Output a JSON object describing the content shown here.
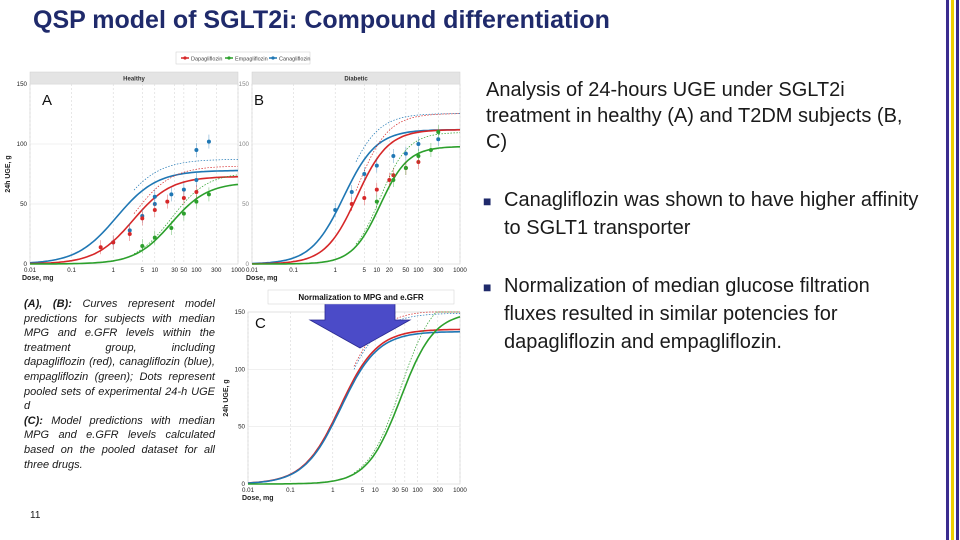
{
  "title": "QSP model of SGLT2i: Compound differentiation",
  "analysis_text": "Analysis of 24-hours UGE under SGLT2i treatment in healthy (A) and T2DM subjects (B, C)",
  "bullets": [
    "Canagliflozin was shown to have higher affinity to SGLT1 transporter",
    "Normalization of median glucose filtration fluxes resulted in similar potencies for dapagliflozin and empagliflozin."
  ],
  "caption": {
    "ab_label": "(A), (B):",
    "ab_text": " Curves represent model predictions for subjects with median MPG and e.GFR levels within the treatment group, including dapagliflozin (red), canagliflozin (blue), empagliflozin (green); Dots represent pooled sets of experimental 24-h UGE d",
    "c_label": "(C):",
    "c_text": " Model predictions with median MPG and e.GFR levels calculated based on the pooled dataset for all three drugs."
  },
  "page_number": "11",
  "arrow_label": "Normalization to MPG and e.GFR",
  "colors": {
    "dapagliflozin": "#d62728",
    "empagliflozin": "#2ca02c",
    "canagliflozin": "#1f77b4",
    "title": "#1f2a6b",
    "arrow": "#4b4bc8"
  },
  "chart_data": [
    {
      "type": "line",
      "panel_label": "A",
      "strip_label": "Healthy",
      "legend": [
        "Dapagliflozin",
        "Empagliflozin",
        "Canagliflozin"
      ],
      "xlabel": "Dose, mg",
      "ylabel": "24h UGE, g",
      "xscale": "log",
      "xlim": [
        0.01,
        1000
      ],
      "ylim": [
        0,
        150
      ],
      "xticks": [
        "0.01",
        "0.1",
        "1",
        "5",
        "10",
        "30",
        "50",
        "100",
        "300",
        "1000"
      ],
      "yticks": [
        "0",
        "50",
        "100",
        "150"
      ],
      "series": [
        {
          "name": "Canagliflozin",
          "emax": 78,
          "ed50": 1.2,
          "hill": 0.9
        },
        {
          "name": "Dapagliflozin",
          "emax": 73,
          "ed50": 3.0,
          "hill": 0.95
        },
        {
          "name": "Empagliflozin",
          "emax": 68,
          "ed50": 25,
          "hill": 1.0
        }
      ],
      "points": [
        {
          "series": "Canagliflozin",
          "x": [
            1,
            2.5,
            5,
            10,
            10,
            25,
            50,
            100,
            100,
            200
          ],
          "y": [
            18,
            28,
            40,
            50,
            56,
            58,
            62,
            70,
            95,
            102
          ]
        },
        {
          "series": "Dapagliflozin",
          "x": [
            0.5,
            1,
            2.5,
            5,
            10,
            20,
            50,
            100
          ],
          "y": [
            14,
            18,
            25,
            38,
            45,
            52,
            55,
            60
          ]
        },
        {
          "series": "Empagliflozin",
          "x": [
            5,
            10,
            25,
            50,
            100,
            200
          ],
          "y": [
            15,
            22,
            30,
            42,
            52,
            58
          ]
        }
      ]
    },
    {
      "type": "line",
      "panel_label": "B",
      "strip_label": "Diabetic",
      "xlabel": "Dose, mg",
      "ylabel": "24h UGE, g",
      "xscale": "log",
      "xlim": [
        0.01,
        1000
      ],
      "ylim": [
        0,
        150
      ],
      "xticks": [
        "0.01",
        "0.1",
        "1",
        "5",
        "10",
        "20",
        "50",
        "100",
        "300",
        "1000"
      ],
      "series": [
        {
          "name": "Canagliflozin",
          "emax": 112,
          "ed50": 1.6,
          "hill": 1.1
        },
        {
          "name": "Dapagliflozin",
          "emax": 112,
          "ed50": 3.3,
          "hill": 1.15
        },
        {
          "name": "Empagliflozin",
          "emax": 98,
          "ed50": 12,
          "hill": 1.3
        }
      ],
      "points": [
        {
          "series": "Canagliflozin",
          "x": [
            1,
            2.5,
            5,
            10,
            25,
            50,
            100,
            300
          ],
          "y": [
            45,
            60,
            75,
            82,
            90,
            92,
            100,
            104
          ]
        },
        {
          "series": "Dapagliflozin",
          "x": [
            2.5,
            5,
            10,
            20,
            25,
            50,
            100
          ],
          "y": [
            50,
            55,
            62,
            70,
            74,
            80,
            85
          ]
        },
        {
          "series": "Empagliflozin",
          "x": [
            10,
            25,
            50,
            100,
            200,
            300
          ],
          "y": [
            52,
            70,
            80,
            90,
            95,
            110
          ]
        }
      ]
    },
    {
      "type": "line",
      "panel_label": "C",
      "xlabel": "Dose, mg",
      "ylabel": "24h UGE, g",
      "xscale": "log",
      "xlim": [
        0.01,
        1000
      ],
      "ylim": [
        0,
        150
      ],
      "xticks": [
        "0.01",
        "0.1",
        "1",
        "5",
        "10",
        "30",
        "50",
        "100",
        "300",
        "1000"
      ],
      "yticks": [
        "0",
        "50",
        "100",
        "150"
      ],
      "series": [
        {
          "name": "Dapagliflozin",
          "emax": 135,
          "ed50": 1.5,
          "hill": 1.0
        },
        {
          "name": "Canagliflozin",
          "emax": 133,
          "ed50": 1.55,
          "hill": 1.0
        },
        {
          "name": "Empagliflozin",
          "emax": 150,
          "ed50": 40,
          "hill": 1.1
        }
      ]
    }
  ]
}
